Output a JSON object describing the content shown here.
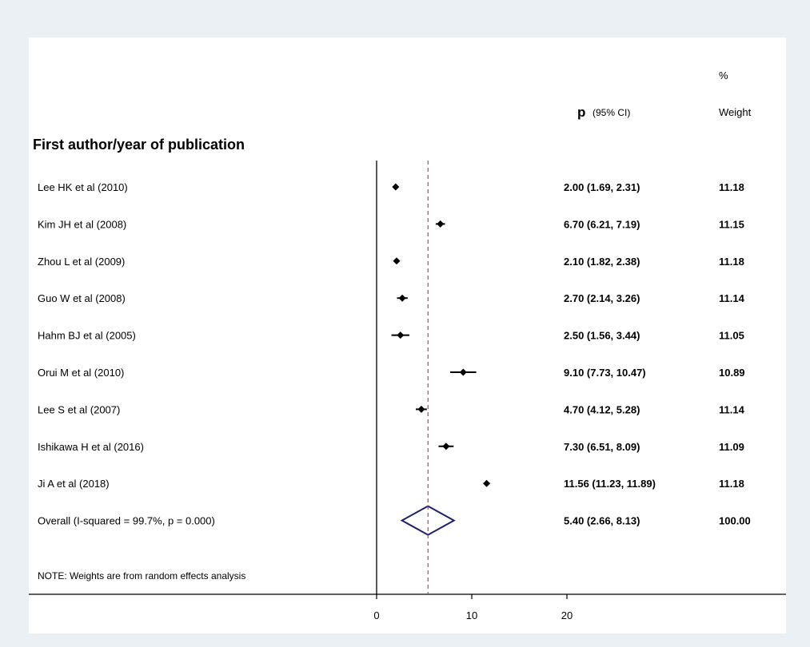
{
  "chart_data": {
    "type": "forest",
    "column_header_study": "First author/year of publication",
    "column_header_estimate_symbol": "p",
    "column_header_estimate_ci": "(95% CI)",
    "column_header_weight_line1": "%",
    "column_header_weight_line2": "Weight",
    "x_ticks": [
      0,
      10,
      20
    ],
    "xlim": [
      0,
      20
    ],
    "reference_line": 0,
    "overall_line": 5.4,
    "colors": {
      "marker": "#000000",
      "diamond": "#1f1f6b",
      "overall_line": "#a04040",
      "axis": "#000000"
    },
    "studies": [
      {
        "label": "Lee HK et al (2010)",
        "estimate": 2.0,
        "lower": 1.69,
        "upper": 2.31,
        "ci_text": "2.00 (1.69, 2.31)",
        "weight": "11.18"
      },
      {
        "label": "Kim JH et al (2008)",
        "estimate": 6.7,
        "lower": 6.21,
        "upper": 7.19,
        "ci_text": "6.70 (6.21, 7.19)",
        "weight": "11.15"
      },
      {
        "label": "Zhou L et al (2009)",
        "estimate": 2.1,
        "lower": 1.82,
        "upper": 2.38,
        "ci_text": "2.10 (1.82, 2.38)",
        "weight": "11.18"
      },
      {
        "label": "Guo W et al (2008)",
        "estimate": 2.7,
        "lower": 2.14,
        "upper": 3.26,
        "ci_text": "2.70 (2.14, 3.26)",
        "weight": "11.14"
      },
      {
        "label": "Hahm BJ et al (2005)",
        "estimate": 2.5,
        "lower": 1.56,
        "upper": 3.44,
        "ci_text": "2.50 (1.56, 3.44)",
        "weight": "11.05"
      },
      {
        "label": "Orui M et al (2010)",
        "estimate": 9.1,
        "lower": 7.73,
        "upper": 10.47,
        "ci_text": "9.10 (7.73, 10.47)",
        "weight": "10.89"
      },
      {
        "label": "Lee S et al (2007)",
        "estimate": 4.7,
        "lower": 4.12,
        "upper": 5.28,
        "ci_text": "4.70 (4.12, 5.28)",
        "weight": "11.14"
      },
      {
        "label": "Ishikawa H et al (2016)",
        "estimate": 7.3,
        "lower": 6.51,
        "upper": 8.09,
        "ci_text": "7.30 (6.51, 8.09)",
        "weight": "11.09"
      },
      {
        "label": "Ji A et al (2018)",
        "estimate": 11.56,
        "lower": 11.23,
        "upper": 11.89,
        "ci_text": "11.56 (11.23, 11.89)",
        "weight": "11.18"
      }
    ],
    "overall": {
      "label": "Overall  (I-squared = 99.7%, p = 0.000)",
      "estimate": 5.4,
      "lower": 2.66,
      "upper": 8.13,
      "ci_text": "5.40 (2.66, 8.13)",
      "weight": "100.00"
    },
    "note": "NOTE: Weights are from random effects analysis"
  }
}
